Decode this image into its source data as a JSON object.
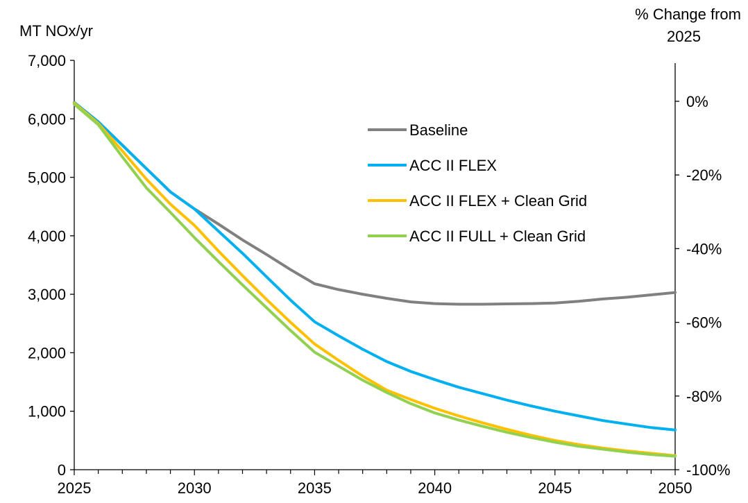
{
  "chart_data": {
    "type": "line",
    "title": "",
    "y_left_label": "MT NOx/yr",
    "y_right_label_lines": [
      "% Change from",
      "2025"
    ],
    "x": [
      2025,
      2030,
      2035,
      2040,
      2045,
      2050
    ],
    "x_tick_labels": [
      "2025",
      "2030",
      "2035",
      "2040",
      "2045",
      "2050"
    ],
    "xlim": [
      2025,
      2050
    ],
    "ylim_left": [
      0,
      7000
    ],
    "y_left_ticks": [
      0,
      1000,
      2000,
      3000,
      4000,
      5000,
      6000,
      7000
    ],
    "y_left_tick_labels": [
      "0",
      "1,000",
      "2,000",
      "3,000",
      "4,000",
      "5,000",
      "6,000",
      "7,000"
    ],
    "y_right_ticks": [
      0,
      -20,
      -40,
      -60,
      -80,
      -100
    ],
    "y_right_tick_labels": [
      "0%",
      "-20%",
      "-40%",
      "-60%",
      "-80%",
      "-100%"
    ],
    "y_right_reference": 6300,
    "series": [
      {
        "name": "Baseline",
        "color": "#808080",
        "x": [
          2025,
          2026,
          2027,
          2028,
          2029,
          2030,
          2031,
          2032,
          2033,
          2034,
          2035,
          2036,
          2037,
          2038,
          2039,
          2040,
          2041,
          2042,
          2043,
          2044,
          2045,
          2046,
          2047,
          2048,
          2049,
          2050
        ],
        "values": [
          6280,
          5950,
          5550,
          5150,
          4750,
          4460,
          4200,
          3930,
          3680,
          3420,
          3180,
          3080,
          3000,
          2930,
          2870,
          2840,
          2830,
          2830,
          2835,
          2840,
          2850,
          2880,
          2920,
          2950,
          2990,
          3030
        ]
      },
      {
        "name": "ACC II FLEX",
        "color": "#00B0F0",
        "x": [
          2025,
          2026,
          2027,
          2028,
          2029,
          2030,
          2031,
          2032,
          2033,
          2034,
          2035,
          2036,
          2037,
          2038,
          2039,
          2040,
          2041,
          2042,
          2043,
          2044,
          2045,
          2046,
          2047,
          2048,
          2049,
          2050
        ],
        "values": [
          6280,
          5950,
          5550,
          5150,
          4750,
          4460,
          4080,
          3700,
          3300,
          2900,
          2530,
          2290,
          2060,
          1850,
          1680,
          1540,
          1410,
          1300,
          1190,
          1090,
          1000,
          920,
          840,
          780,
          720,
          680
        ]
      },
      {
        "name": "ACC II FLEX + Clean Grid",
        "color": "#FFC000",
        "x": [
          2025,
          2026,
          2027,
          2028,
          2029,
          2030,
          2031,
          2032,
          2033,
          2034,
          2035,
          2036,
          2037,
          2038,
          2039,
          2040,
          2041,
          2042,
          2043,
          2044,
          2045,
          2046,
          2047,
          2048,
          2049,
          2050
        ],
        "values": [
          6270,
          5920,
          5450,
          4970,
          4540,
          4180,
          3740,
          3320,
          2910,
          2520,
          2150,
          1870,
          1600,
          1360,
          1200,
          1050,
          920,
          800,
          690,
          590,
          500,
          430,
          370,
          320,
          280,
          240
        ]
      },
      {
        "name": "ACC II FULL + Clean Grid",
        "color": "#92D050",
        "x": [
          2025,
          2026,
          2027,
          2028,
          2029,
          2030,
          2031,
          2032,
          2033,
          2034,
          2035,
          2036,
          2037,
          2038,
          2039,
          2040,
          2041,
          2042,
          2043,
          2044,
          2045,
          2046,
          2047,
          2048,
          2049,
          2050
        ],
        "values": [
          6250,
          5900,
          5350,
          4820,
          4400,
          3970,
          3560,
          3160,
          2770,
          2380,
          2010,
          1770,
          1530,
          1320,
          1130,
          970,
          850,
          740,
          640,
          550,
          470,
          400,
          350,
          300,
          260,
          230
        ]
      }
    ],
    "legend": {
      "position": "upper-right-inside"
    },
    "grid": false
  }
}
